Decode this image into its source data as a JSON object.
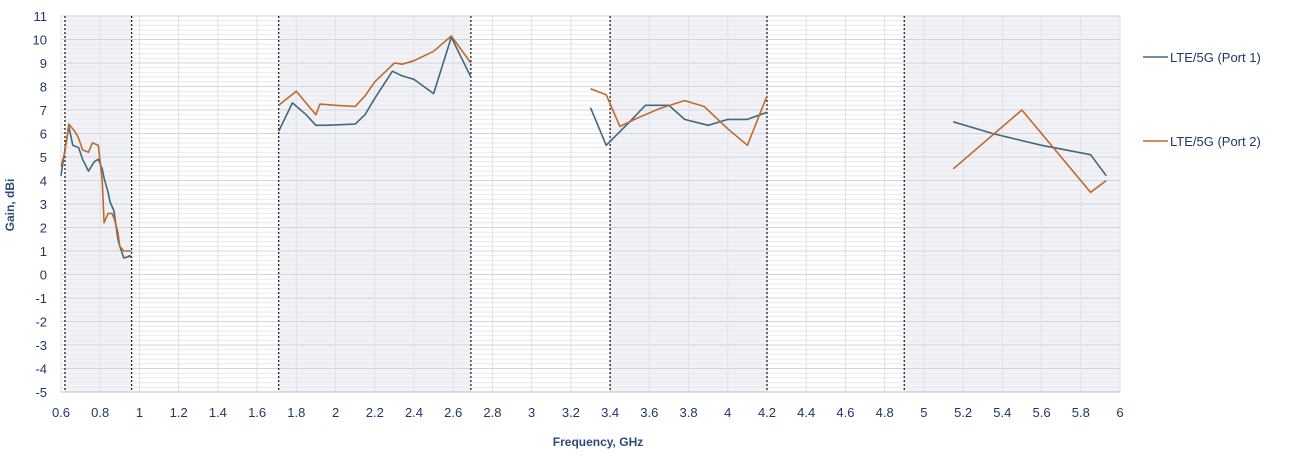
{
  "chart_data": {
    "type": "line",
    "title": "",
    "xlabel": "Frequency, GHz",
    "ylabel": "Gain, dBi",
    "xlim": [
      0.6,
      6.0
    ],
    "ylim": [
      -5,
      11
    ],
    "x_major_step": 0.2,
    "y_major_step": 1,
    "y_minor_step": 0.2,
    "grid": true,
    "legend_position": "right",
    "band_shading_color": "#f2f2f6",
    "band_boundary_color": "#222222",
    "grid_color": "#d9dde6",
    "bands": [
      [
        0.62,
        0.96
      ],
      [
        1.71,
        2.69
      ],
      [
        3.4,
        4.2
      ],
      [
        4.9,
        6.0
      ]
    ],
    "x_ticks": [
      "0.6",
      "0.8",
      "1",
      "1.2",
      "1.4",
      "1.6",
      "1.8",
      "2",
      "2.2",
      "2.4",
      "2.6",
      "2.8",
      "3",
      "3.2",
      "3.4",
      "3.6",
      "3.8",
      "4",
      "4.2",
      "4.4",
      "4.6",
      "4.8",
      "5",
      "5.2",
      "5.4",
      "5.6",
      "5.8",
      "6"
    ],
    "y_ticks": [
      "11",
      "10",
      "9",
      "8",
      "7",
      "6",
      "5",
      "4",
      "3",
      "2",
      "1",
      "0",
      "-1",
      "-2",
      "-3",
      "-4",
      "-5"
    ],
    "series": [
      {
        "name": "LTE/5G (Port 1)",
        "color": "#41687d",
        "segments": [
          [
            [
              0.6,
              4.2
            ],
            [
              0.62,
              5.3
            ],
            [
              0.64,
              6.3
            ],
            [
              0.66,
              5.5
            ],
            [
              0.69,
              5.4
            ],
            [
              0.71,
              4.9
            ],
            [
              0.74,
              4.4
            ],
            [
              0.77,
              4.8
            ],
            [
              0.79,
              4.9
            ],
            [
              0.81,
              4.5
            ],
            [
              0.82,
              4.1
            ],
            [
              0.84,
              3.5
            ],
            [
              0.85,
              3.1
            ],
            [
              0.87,
              2.7
            ],
            [
              0.89,
              1.5
            ],
            [
              0.9,
              1.2
            ],
            [
              0.92,
              0.7
            ],
            [
              0.94,
              0.75
            ],
            [
              0.95,
              0.8
            ],
            [
              0.96,
              0.7
            ]
          ],
          [
            [
              1.71,
              6.1
            ],
            [
              1.78,
              7.3
            ],
            [
              1.85,
              6.8
            ],
            [
              1.9,
              6.35
            ],
            [
              1.95,
              6.35
            ],
            [
              2.1,
              6.4
            ],
            [
              2.15,
              6.8
            ],
            [
              2.2,
              7.5
            ],
            [
              2.29,
              8.65
            ],
            [
              2.34,
              8.45
            ],
            [
              2.4,
              8.3
            ],
            [
              2.5,
              7.7
            ],
            [
              2.59,
              10.1
            ],
            [
              2.69,
              8.4
            ]
          ],
          [
            [
              3.3,
              7.1
            ],
            [
              3.38,
              5.5
            ],
            [
              3.5,
              6.5
            ],
            [
              3.58,
              7.2
            ],
            [
              3.7,
              7.2
            ],
            [
              3.78,
              6.6
            ],
            [
              3.9,
              6.35
            ],
            [
              4.0,
              6.6
            ],
            [
              4.1,
              6.6
            ],
            [
              4.2,
              6.9
            ]
          ],
          [
            [
              5.15,
              6.5
            ],
            [
              5.35,
              6.0
            ],
            [
              5.5,
              5.7
            ],
            [
              5.6,
              5.5
            ],
            [
              5.85,
              5.1
            ],
            [
              5.93,
              4.2
            ]
          ]
        ]
      },
      {
        "name": "LTE/5G (Port 2)",
        "color": "#bf6a2e",
        "segments": [
          [
            [
              0.6,
              4.6
            ],
            [
              0.62,
              5.2
            ],
            [
              0.64,
              6.4
            ],
            [
              0.67,
              6.1
            ],
            [
              0.69,
              5.8
            ],
            [
              0.71,
              5.3
            ],
            [
              0.74,
              5.2
            ],
            [
              0.76,
              5.6
            ],
            [
              0.79,
              5.5
            ],
            [
              0.81,
              4.0
            ],
            [
              0.82,
              2.2
            ],
            [
              0.84,
              2.6
            ],
            [
              0.86,
              2.6
            ],
            [
              0.87,
              2.4
            ],
            [
              0.89,
              1.8
            ],
            [
              0.9,
              1.2
            ],
            [
              0.92,
              1.0
            ],
            [
              0.94,
              1.0
            ],
            [
              0.96,
              1.0
            ]
          ],
          [
            [
              1.71,
              7.2
            ],
            [
              1.8,
              7.8
            ],
            [
              1.9,
              6.8
            ],
            [
              1.92,
              7.25
            ],
            [
              2.0,
              7.2
            ],
            [
              2.1,
              7.15
            ],
            [
              2.15,
              7.6
            ],
            [
              2.2,
              8.2
            ],
            [
              2.3,
              9.0
            ],
            [
              2.34,
              8.95
            ],
            [
              2.4,
              9.1
            ],
            [
              2.5,
              9.5
            ],
            [
              2.59,
              10.15
            ],
            [
              2.69,
              9.0
            ]
          ],
          [
            [
              3.3,
              7.9
            ],
            [
              3.38,
              7.65
            ],
            [
              3.45,
              6.3
            ],
            [
              3.55,
              6.7
            ],
            [
              3.65,
              7.05
            ],
            [
              3.78,
              7.4
            ],
            [
              3.88,
              7.15
            ],
            [
              4.0,
              6.2
            ],
            [
              4.1,
              5.5
            ],
            [
              4.2,
              7.6
            ]
          ],
          [
            [
              5.15,
              4.5
            ],
            [
              5.5,
              7.0
            ],
            [
              5.85,
              3.5
            ],
            [
              5.93,
              4.0
            ]
          ]
        ]
      }
    ]
  }
}
